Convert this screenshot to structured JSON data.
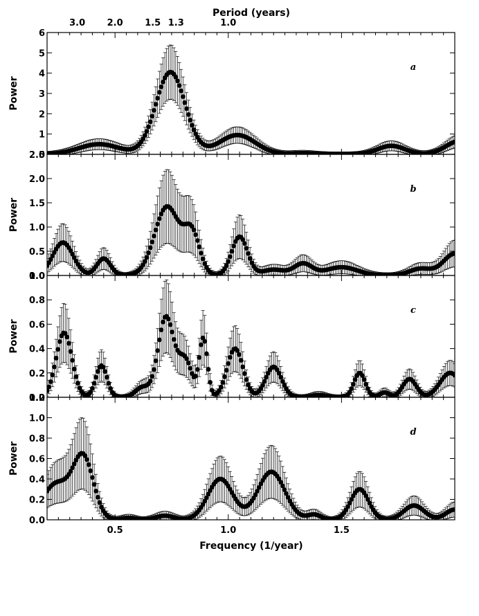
{
  "chart_data": {
    "type": "scatter",
    "xlabel": "Frequency (1/year)",
    "top_axis_label": "Period (years)",
    "xlim": [
      0.2,
      2.0
    ],
    "x_ticks": [
      0.5,
      1.0,
      1.5
    ],
    "x_tick_labels": [
      "0.5",
      "1.0",
      "1.5"
    ],
    "period_ticks": [
      {
        "label": "3.0",
        "period": 3.0
      },
      {
        "label": "2.0",
        "period": 2.0
      },
      {
        "label": "1.5",
        "period": 1.5
      },
      {
        "label": "1.3",
        "period": 1.3
      },
      {
        "label": "1.0",
        "period": 1.0
      }
    ],
    "panels": [
      {
        "letter": "a",
        "ylabel": "Power",
        "ylim": [
          0,
          6
        ],
        "y_ticks": [
          0,
          1,
          2,
          3,
          4,
          5,
          6
        ],
        "y_tick_labels": [
          "0",
          "1",
          "2",
          "3",
          "4",
          "5",
          "6"
        ],
        "peaks": [
          {
            "c": 0.43,
            "w": 0.09,
            "h": 0.5
          },
          {
            "c": 0.745,
            "w": 0.065,
            "h": 4.05
          },
          {
            "c": 1.04,
            "w": 0.08,
            "h": 0.95
          },
          {
            "c": 1.33,
            "w": 0.05,
            "h": 0.06
          },
          {
            "c": 1.72,
            "w": 0.06,
            "h": 0.42
          },
          {
            "c": 2.02,
            "w": 0.06,
            "h": 0.65
          }
        ],
        "err_frac": 0.3
      },
      {
        "letter": "b",
        "ylabel": "Power",
        "ylim": [
          0,
          2.5
        ],
        "y_ticks": [
          0,
          0.5,
          1.0,
          1.5,
          2.0,
          2.5
        ],
        "y_tick_labels": [
          "0.0",
          "0.5",
          "1.0",
          "1.5",
          "2.0",
          "2.5"
        ],
        "peaks": [
          {
            "c": 0.27,
            "w": 0.045,
            "h": 0.68
          },
          {
            "c": 0.45,
            "w": 0.03,
            "h": 0.35
          },
          {
            "c": 0.73,
            "w": 0.055,
            "h": 1.42
          },
          {
            "c": 0.84,
            "w": 0.035,
            "h": 0.82
          },
          {
            "c": 1.05,
            "w": 0.035,
            "h": 0.8
          },
          {
            "c": 1.2,
            "w": 0.05,
            "h": 0.12
          },
          {
            "c": 1.33,
            "w": 0.04,
            "h": 0.24
          },
          {
            "c": 1.5,
            "w": 0.07,
            "h": 0.17
          },
          {
            "c": 1.85,
            "w": 0.05,
            "h": 0.14
          },
          {
            "c": 2.0,
            "w": 0.05,
            "h": 0.45
          }
        ],
        "err_frac": 0.5
      },
      {
        "letter": "c",
        "ylabel": "Power",
        "ylim": [
          0,
          1.0
        ],
        "y_ticks": [
          0,
          0.2,
          0.4,
          0.6,
          0.8,
          1.0
        ],
        "y_tick_labels": [
          "0.0",
          "0.2",
          "0.4",
          "0.6",
          "0.8",
          "1.0"
        ],
        "peaks": [
          {
            "c": 0.275,
            "w": 0.035,
            "h": 0.53
          },
          {
            "c": 0.44,
            "w": 0.025,
            "h": 0.26
          },
          {
            "c": 0.62,
            "w": 0.03,
            "h": 0.08
          },
          {
            "c": 0.725,
            "w": 0.035,
            "h": 0.66
          },
          {
            "c": 0.81,
            "w": 0.03,
            "h": 0.3
          },
          {
            "c": 0.89,
            "w": 0.018,
            "h": 0.48
          },
          {
            "c": 1.03,
            "w": 0.035,
            "h": 0.4
          },
          {
            "c": 1.2,
            "w": 0.035,
            "h": 0.25
          },
          {
            "c": 1.4,
            "w": 0.03,
            "h": 0.02
          },
          {
            "c": 1.58,
            "w": 0.025,
            "h": 0.2
          },
          {
            "c": 1.69,
            "w": 0.02,
            "h": 0.04
          },
          {
            "c": 1.8,
            "w": 0.03,
            "h": 0.15
          },
          {
            "c": 1.98,
            "w": 0.045,
            "h": 0.2
          }
        ],
        "err_frac": 0.42
      },
      {
        "letter": "d",
        "ylabel": "Power",
        "ylim": [
          0,
          1.2
        ],
        "y_ticks": [
          0,
          0.2,
          0.4,
          0.6,
          0.8,
          1.0,
          1.2
        ],
        "y_tick_labels": [
          "0.0",
          "0.2",
          "0.4",
          "0.6",
          "0.8",
          "1.0",
          "1.2"
        ],
        "peaks": [
          {
            "c": 0.24,
            "w": 0.06,
            "h": 0.35
          },
          {
            "c": 0.36,
            "w": 0.045,
            "h": 0.6
          },
          {
            "c": 0.56,
            "w": 0.03,
            "h": 0.02
          },
          {
            "c": 0.72,
            "w": 0.04,
            "h": 0.04
          },
          {
            "c": 0.965,
            "w": 0.055,
            "h": 0.4
          },
          {
            "c": 1.19,
            "w": 0.06,
            "h": 0.47
          },
          {
            "c": 1.38,
            "w": 0.03,
            "h": 0.05
          },
          {
            "c": 1.58,
            "w": 0.04,
            "h": 0.3
          },
          {
            "c": 1.82,
            "w": 0.045,
            "h": 0.14
          },
          {
            "c": 2.0,
            "w": 0.04,
            "h": 0.1
          }
        ],
        "err_frac": 0.5
      }
    ]
  }
}
